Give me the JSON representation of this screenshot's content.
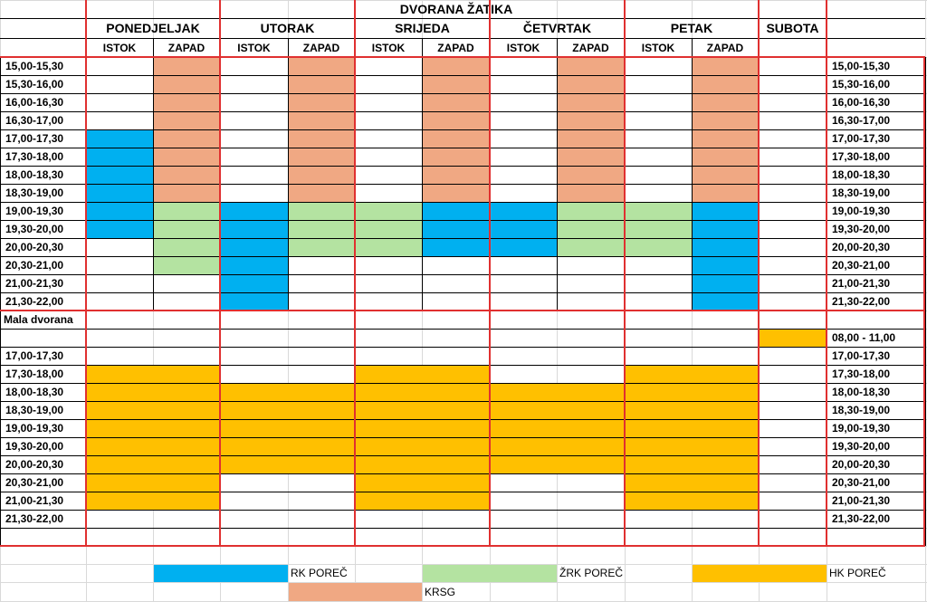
{
  "title": "DVORANA ŽATIKA",
  "days": [
    "PONEDJELJAK",
    "UTORAK",
    "SRIJEDA",
    "ČETVRTAK",
    "PETAK",
    "SUBOTA"
  ],
  "sides": [
    "ISTOK",
    "ZAPAD"
  ],
  "colors": {
    "RK": "#00b0f0",
    "ZRK": "#b4e3a1",
    "HK": "#ffc000",
    "KRSG": "#f0a883",
    "red_border": "#e03030"
  },
  "upper": {
    "times": [
      "15,00-15,30",
      "15,30-16,00",
      "16,00-16,30",
      "16,30-17,00",
      "17,00-17,30",
      "17,30-18,00",
      "18,00-18,30",
      "18,30-19,00",
      "19,00-19,30",
      "19,30-20,00",
      "20,00-20,30",
      "20,30-21,00",
      "21,00-21,30",
      "21,30-22,00"
    ],
    "fill": [
      [
        "",
        "KRSG",
        "",
        "KRSG",
        "",
        "KRSG",
        "",
        "KRSG",
        "",
        "KRSG",
        ""
      ],
      [
        "",
        "KRSG",
        "",
        "KRSG",
        "",
        "KRSG",
        "",
        "KRSG",
        "",
        "KRSG",
        ""
      ],
      [
        "",
        "KRSG",
        "",
        "KRSG",
        "",
        "KRSG",
        "",
        "KRSG",
        "",
        "KRSG",
        ""
      ],
      [
        "",
        "KRSG",
        "",
        "KRSG",
        "",
        "KRSG",
        "",
        "KRSG",
        "",
        "KRSG",
        ""
      ],
      [
        "RK",
        "KRSG",
        "",
        "KRSG",
        "",
        "KRSG",
        "",
        "KRSG",
        "",
        "KRSG",
        ""
      ],
      [
        "RK",
        "KRSG",
        "",
        "KRSG",
        "",
        "KRSG",
        "",
        "KRSG",
        "",
        "KRSG",
        ""
      ],
      [
        "RK",
        "KRSG",
        "",
        "KRSG",
        "",
        "KRSG",
        "",
        "KRSG",
        "",
        "KRSG",
        ""
      ],
      [
        "RK",
        "KRSG",
        "",
        "KRSG",
        "",
        "KRSG",
        "",
        "KRSG",
        "",
        "KRSG",
        ""
      ],
      [
        "RK",
        "ZRK",
        "RK",
        "ZRK",
        "ZRK",
        "RK",
        "RK",
        "ZRK",
        "ZRK",
        "RK",
        ""
      ],
      [
        "RK",
        "ZRK",
        "RK",
        "ZRK",
        "ZRK",
        "RK",
        "RK",
        "ZRK",
        "ZRK",
        "RK",
        ""
      ],
      [
        "",
        "ZRK",
        "RK",
        "ZRK",
        "ZRK",
        "RK",
        "RK",
        "ZRK",
        "ZRK",
        "RK",
        ""
      ],
      [
        "",
        "ZRK",
        "RK",
        "",
        "",
        "",
        "",
        "",
        "",
        "RK",
        ""
      ],
      [
        "",
        "",
        "RK",
        "",
        "",
        "",
        "",
        "",
        "",
        "RK",
        ""
      ],
      [
        "",
        "",
        "RK",
        "",
        "",
        "",
        "",
        "",
        "",
        "RK",
        ""
      ]
    ]
  },
  "mala": {
    "label": "Mala dvorana",
    "saturday_time": "08,00 - 11,00",
    "saturday_fill": "HK",
    "times": [
      "17,00-17,30",
      "17,30-18,00",
      "18,00-18,30",
      "18,30-19,00",
      "19,00-19,30",
      "19,30-20,00",
      "20,00-20,30",
      "20,30-21,00",
      "21,00-21,30",
      "21,30-22,00"
    ],
    "fill": [
      [
        "",
        "",
        "",
        "",
        "",
        ""
      ],
      [
        "HK",
        "",
        "HK",
        "",
        "HK",
        ""
      ],
      [
        "HK",
        "HK",
        "HK",
        "HK",
        "HK",
        ""
      ],
      [
        "HK",
        "HK",
        "HK",
        "HK",
        "HK",
        ""
      ],
      [
        "HK",
        "HK",
        "HK",
        "HK",
        "HK",
        ""
      ],
      [
        "HK",
        "HK",
        "HK",
        "HK",
        "HK",
        ""
      ],
      [
        "HK",
        "HK",
        "HK",
        "HK",
        "HK",
        ""
      ],
      [
        "HK",
        "",
        "HK",
        "",
        "HK",
        ""
      ],
      [
        "HK",
        "",
        "HK",
        "",
        "HK",
        ""
      ],
      [
        "",
        "",
        "",
        "",
        "",
        ""
      ]
    ]
  },
  "legend": [
    {
      "key": "RK",
      "label": "RK POREČ"
    },
    {
      "key": "ZRK",
      "label": "ŽRK POREČ"
    },
    {
      "key": "HK",
      "label": "HK POREČ"
    },
    {
      "key": "KRSG",
      "label": "KRSG"
    }
  ]
}
